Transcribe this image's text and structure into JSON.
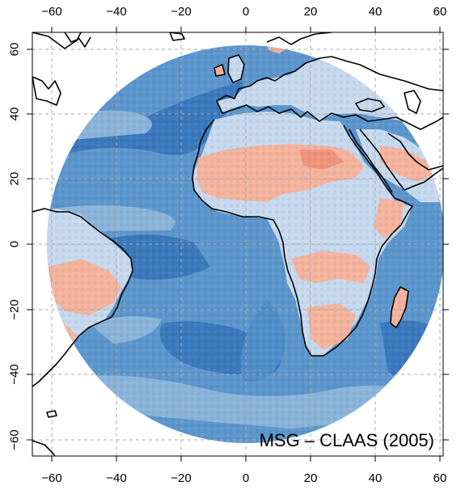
{
  "title": "MSG – CLAAS (2005)",
  "x_axis": {
    "ticks": [
      -60,
      -40,
      -20,
      0,
      20,
      40,
      60
    ],
    "labels": [
      "−60",
      "−40",
      "−20",
      "0",
      "20",
      "40",
      "60"
    ],
    "range": [
      -65,
      65
    ]
  },
  "y_axis": {
    "ticks": [
      60,
      40,
      20,
      0,
      -20,
      -40,
      -60
    ],
    "labels": [
      "60",
      "40",
      "20",
      "0",
      "−20",
      "−40",
      "−60"
    ],
    "range": [
      -65,
      65
    ]
  },
  "grid": true,
  "disk_extent_degrees": 63,
  "colors": {
    "ocean_base": "#5b96cc",
    "ocean_dark": "#3a78bd",
    "ocean_mid": "#4f8dc9",
    "ocean_light": "#8ab4da",
    "land_base": "#c6d9ee",
    "land_warm": "#f4b39d",
    "land_hot": "#f0947a",
    "coastline": "#000000",
    "grid": "#a8a8a8"
  }
}
